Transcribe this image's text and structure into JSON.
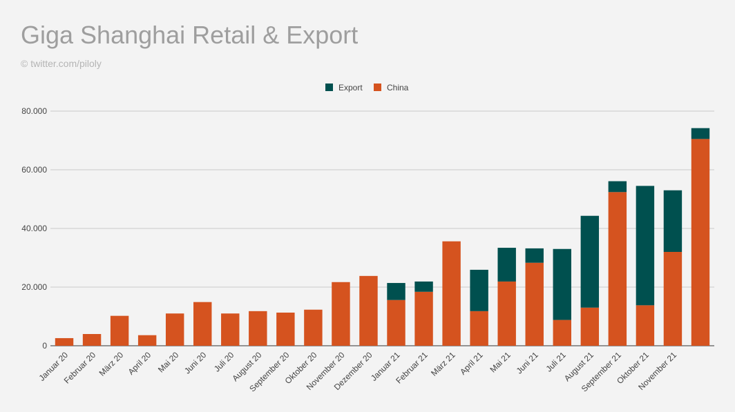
{
  "title": "Giga Shanghai Retail & Export",
  "subtitle": "© twitter.com/piloly",
  "colors": {
    "export": "#00504f",
    "china": "#d5531f",
    "grid": "#c8c8c8",
    "background": "#f3f3f3"
  },
  "chart_data": {
    "type": "bar",
    "stacked": true,
    "title": "Giga Shanghai Retail & Export",
    "subtitle": "© twitter.com/piloly",
    "xlabel": "",
    "ylabel": "",
    "ylim": [
      0,
      80000
    ],
    "yticks": [
      0,
      20000,
      40000,
      60000,
      80000
    ],
    "ytick_labels": [
      "0",
      "20.000",
      "40.000",
      "60.000",
      "80.000"
    ],
    "grid": true,
    "legend_position": "top",
    "legend": [
      "Export",
      "China"
    ],
    "categories": [
      "Januar 20",
      "Februar 20",
      "März 20",
      "April 20",
      "Mai 20",
      "Juni 20",
      "Juli 20",
      "August 20",
      "September 20",
      "Oktober 20",
      "November 20",
      "Dezember 20",
      "Januar 21",
      "Februar 21",
      "März 21",
      "April 21",
      "Mai 21",
      "Juni 21",
      "Juli 21",
      "August 21",
      "September 21",
      "Oktober 21",
      "November 21",
      ""
    ],
    "xtick_labels": [
      "Januar 20",
      "Februar 20",
      "März 20",
      "April 20",
      "Mai 20",
      "Juni 20",
      "Juli 20",
      "August 20",
      "September 20",
      "Oktober 20",
      "November 20",
      "Dezember 20",
      "Januar 21",
      "Februar 21",
      "März 21",
      "April 21",
      "Mai 21",
      "Juni 21",
      "Juli 21",
      "August 21",
      "September 21",
      "Oktober 21",
      "November 21"
    ],
    "series": [
      {
        "name": "China",
        "values": [
          2600,
          4000,
          10200,
          3600,
          11000,
          14900,
          11000,
          11800,
          11300,
          12300,
          21700,
          23800,
          15600,
          18400,
          35600,
          11800,
          21900,
          28300,
          8800,
          13000,
          52400,
          13800,
          32000,
          70500
        ]
      },
      {
        "name": "Export",
        "values": [
          0,
          0,
          0,
          0,
          0,
          0,
          0,
          0,
          0,
          0,
          0,
          0,
          5800,
          3500,
          0,
          14100,
          11500,
          4900,
          24200,
          31300,
          3700,
          40700,
          21000,
          3700
        ]
      }
    ]
  }
}
